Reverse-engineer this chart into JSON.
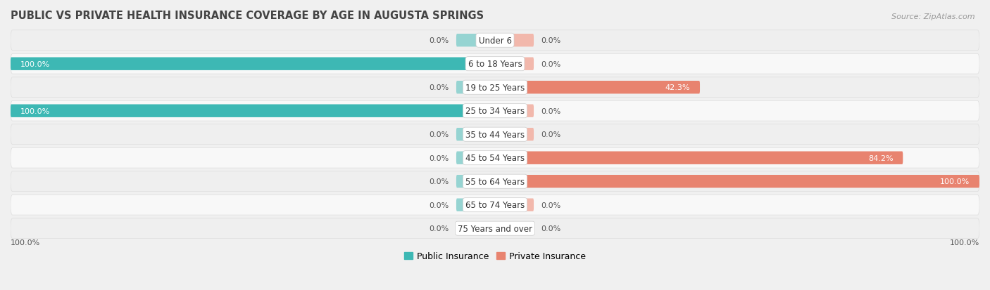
{
  "title": "PUBLIC VS PRIVATE HEALTH INSURANCE COVERAGE BY AGE IN AUGUSTA SPRINGS",
  "source": "Source: ZipAtlas.com",
  "categories": [
    "Under 6",
    "6 to 18 Years",
    "19 to 25 Years",
    "25 to 34 Years",
    "35 to 44 Years",
    "45 to 54 Years",
    "55 to 64 Years",
    "65 to 74 Years",
    "75 Years and over"
  ],
  "public_values": [
    0.0,
    100.0,
    0.0,
    100.0,
    0.0,
    0.0,
    0.0,
    0.0,
    0.0
  ],
  "private_values": [
    0.0,
    0.0,
    42.3,
    0.0,
    0.0,
    84.2,
    100.0,
    0.0,
    0.0
  ],
  "public_color": "#3db8b4",
  "private_color": "#e8836f",
  "public_color_light": "#96d4d2",
  "private_color_light": "#f2b8ac",
  "bg_row_even": "#efefef",
  "bg_row_odd": "#f8f8f8",
  "title_color": "#444444",
  "source_color": "#999999",
  "value_color_dark": "#555555",
  "value_color_white": "#ffffff",
  "legend_public": "Public Insurance",
  "legend_private": "Private Insurance",
  "x_min": -100,
  "x_max": 100,
  "bar_height": 0.55,
  "stub_size": 8,
  "axis_label_left": "100.0%",
  "axis_label_right": "100.0%",
  "title_fontsize": 10.5,
  "source_fontsize": 8,
  "label_fontsize": 8.5,
  "value_fontsize": 8,
  "legend_fontsize": 9
}
